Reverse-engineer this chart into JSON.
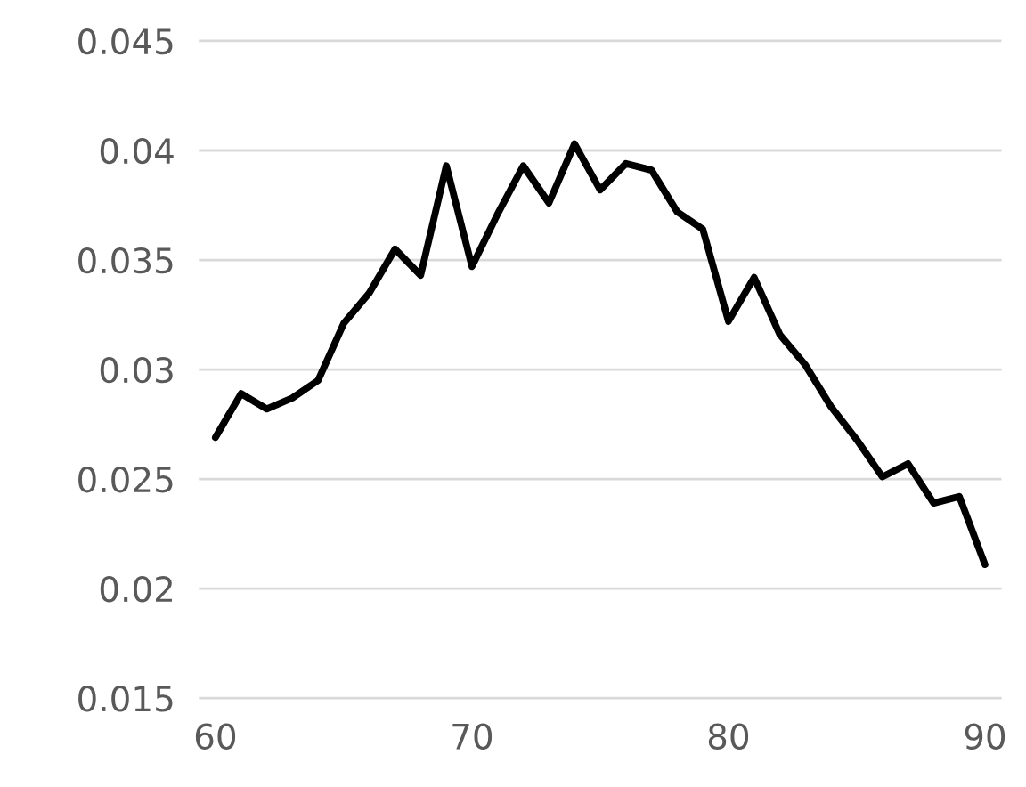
{
  "chart_data": {
    "type": "line",
    "x": [
      60,
      61,
      62,
      63,
      64,
      65,
      66,
      67,
      68,
      69,
      70,
      71,
      72,
      73,
      74,
      75,
      76,
      77,
      78,
      79,
      80,
      81,
      82,
      83,
      84,
      85,
      86,
      87,
      88,
      89,
      90
    ],
    "series": [
      {
        "color": "#000000",
        "values": [
          0.0269,
          0.0289,
          0.0282,
          0.0287,
          0.0295,
          0.0321,
          0.0335,
          0.0355,
          0.0343,
          0.0393,
          0.0347,
          0.0371,
          0.0393,
          0.0376,
          0.0403,
          0.0382,
          0.0394,
          0.0391,
          0.0372,
          0.0364,
          0.0322,
          0.0342,
          0.0316,
          0.0302,
          0.0283,
          0.0268,
          0.0251,
          0.0257,
          0.0239,
          0.0242,
          0.0211
        ]
      }
    ],
    "xlim": [
      59.4,
      90.6
    ],
    "xticks": [
      60,
      70,
      80,
      90
    ],
    "ylim": [
      0.015,
      0.045
    ],
    "yticks": [
      0.015,
      0.02,
      0.025,
      0.03,
      0.035,
      0.04,
      0.045
    ],
    "grid": "y",
    "marker": "none",
    "line_style": "solid"
  }
}
